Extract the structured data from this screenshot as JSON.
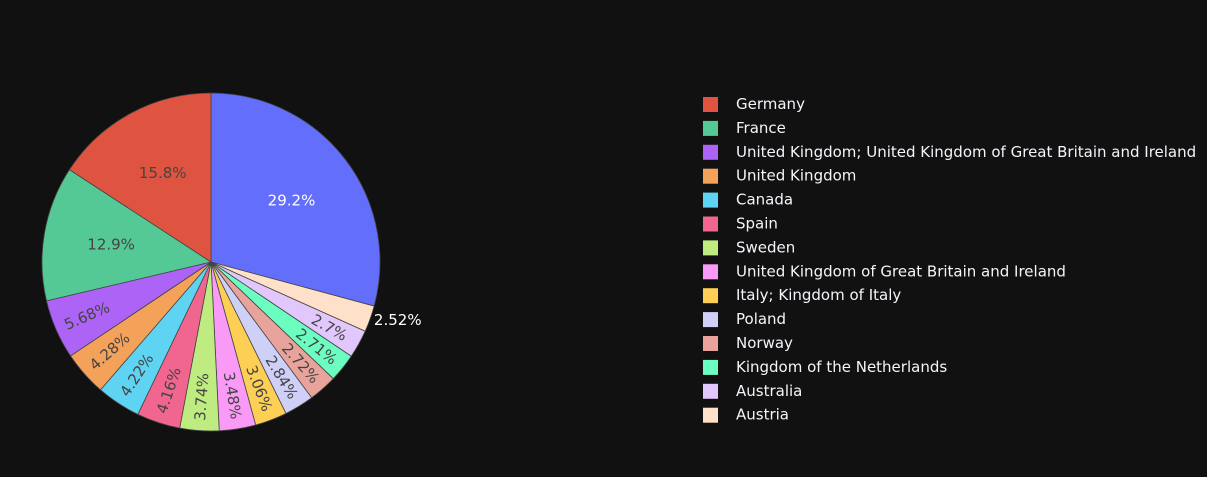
{
  "chart_data": {
    "type": "pie",
    "background": "#111111",
    "legend_position": "right",
    "slices": [
      {
        "label": "",
        "percent": 29.2,
        "percent_label": "29.2%",
        "color": "#636efa",
        "label_color": "#ffffff",
        "label_inside": true
      },
      {
        "label": "Austria",
        "percent": 2.52,
        "percent_label": "2.52%",
        "color": "#ffe0c9",
        "label_color": "#ffffff",
        "label_inside": false
      },
      {
        "label": "Australia",
        "percent": 2.7,
        "percent_label": "2.7%",
        "color": "#e1c7fb",
        "label_color": "#444444",
        "label_inside": true
      },
      {
        "label": "Kingdom of the Netherlands",
        "percent": 2.71,
        "percent_label": "2.71%",
        "color": "#6cfdc0",
        "label_color": "#444444",
        "label_inside": true
      },
      {
        "label": "Norway",
        "percent": 2.72,
        "percent_label": "2.72%",
        "color": "#e8a49c",
        "label_color": "#444444",
        "label_inside": true
      },
      {
        "label": "Poland",
        "percent": 2.84,
        "percent_label": "2.84%",
        "color": "#cfd0f8",
        "label_color": "#444444",
        "label_inside": true
      },
      {
        "label": "Italy; Kingdom of Italy",
        "percent": 3.06,
        "percent_label": "3.06%",
        "color": "#fdd055",
        "label_color": "#444444",
        "label_inside": true
      },
      {
        "label": "United Kingdom of Great Britain and Ireland",
        "percent": 3.48,
        "percent_label": "3.48%",
        "color": "#f99af7",
        "label_color": "#444444",
        "label_inside": true
      },
      {
        "label": "Sweden",
        "percent": 3.74,
        "percent_label": "3.74%",
        "color": "#bfec80",
        "label_color": "#444444",
        "label_inside": true
      },
      {
        "label": "Spain",
        "percent": 4.16,
        "percent_label": "4.16%",
        "color": "#f0668e",
        "label_color": "#444444",
        "label_inside": true
      },
      {
        "label": "Canada",
        "percent": 4.22,
        "percent_label": "4.22%",
        "color": "#5fd3f2",
        "label_color": "#444444",
        "label_inside": true
      },
      {
        "label": "United Kingdom",
        "percent": 4.28,
        "percent_label": "4.28%",
        "color": "#f4a15a",
        "label_color": "#444444",
        "label_inside": true
      },
      {
        "label": "United Kingdom; United Kingdom of Great Britain and Ireland",
        "percent": 5.68,
        "percent_label": "5.68%",
        "color": "#ac63f6",
        "label_color": "#444444",
        "label_inside": true
      },
      {
        "label": "France",
        "percent": 12.9,
        "percent_label": "12.9%",
        "color": "#54c995",
        "label_color": "#444444",
        "label_inside": true
      },
      {
        "label": "Germany",
        "percent": 15.8,
        "percent_label": "15.8%",
        "color": "#df5441",
        "label_color": "#444444",
        "label_inside": true
      }
    ],
    "legend": [
      {
        "label": "Germany",
        "color": "#df5441"
      },
      {
        "label": "France",
        "color": "#54c995"
      },
      {
        "label": "United Kingdom; United Kingdom of Great Britain and Ireland",
        "color": "#ac63f6"
      },
      {
        "label": "United Kingdom",
        "color": "#f4a15a"
      },
      {
        "label": "Canada",
        "color": "#5fd3f2"
      },
      {
        "label": "Spain",
        "color": "#f0668e"
      },
      {
        "label": "Sweden",
        "color": "#bfec80"
      },
      {
        "label": "United Kingdom of Great Britain and Ireland",
        "color": "#f99af7"
      },
      {
        "label": "Italy; Kingdom of Italy",
        "color": "#fdd055"
      },
      {
        "label": "Poland",
        "color": "#cfd0f8"
      },
      {
        "label": "Norway",
        "color": "#e8a49c"
      },
      {
        "label": "Kingdom of the Netherlands",
        "color": "#6cfdc0"
      },
      {
        "label": "Australia",
        "color": "#e1c7fb"
      },
      {
        "label": "Austria",
        "color": "#ffe0c9"
      }
    ]
  }
}
